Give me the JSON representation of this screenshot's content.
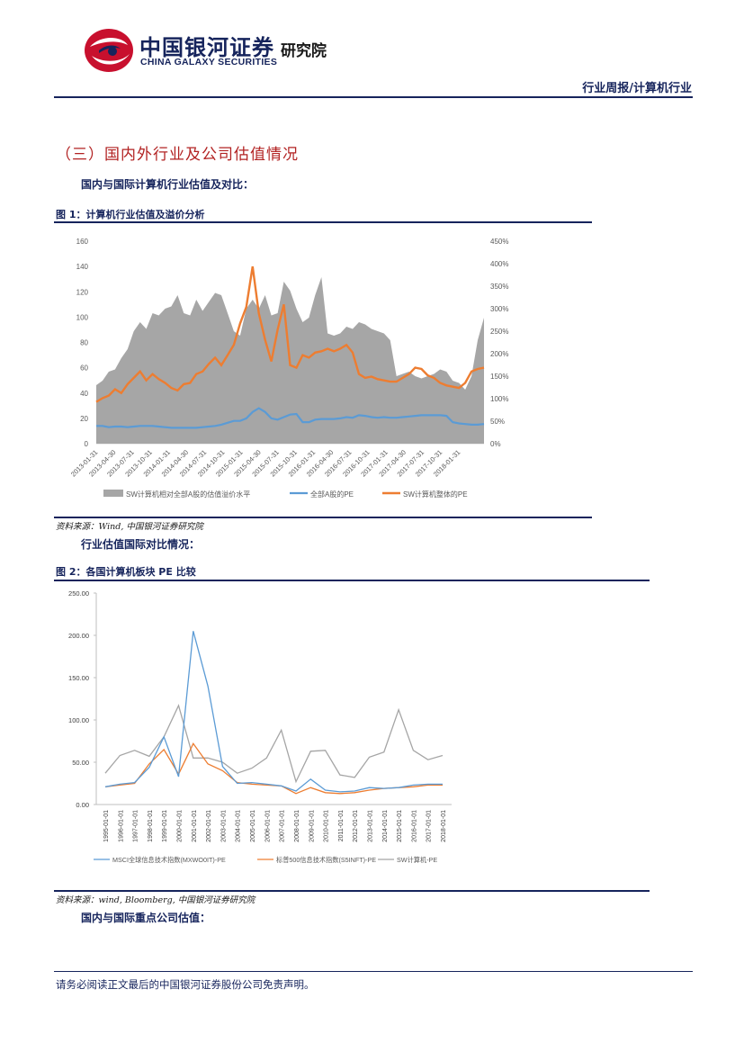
{
  "header": {
    "logo_cn": "中国银河证券",
    "logo_en": "CHINA GALAXY SECURITIES",
    "logo_institute": "研究院",
    "report_type": "行业周报/计算机行业"
  },
  "section": {
    "title": "（三）国内外行业及公司估值情况",
    "sub1": "国内与国际计算机行业估值及对比：",
    "sub2": "行业估值国际对比情况：",
    "sub3": "国内与国际重点公司估值："
  },
  "figure1": {
    "title": "图 1：计算机行业估值及溢价分析",
    "source": "资料来源：Wind, 中国银河证券研究院"
  },
  "figure2": {
    "title": "图 2：各国计算机板块 PE 比较",
    "source": "资料来源：wind, Bloomberg, 中国银河证券研究院"
  },
  "footer": {
    "disclaimer": "请务必阅读正文最后的中国银河证券股份公司免责声明。"
  },
  "colors": {
    "navy": "#16245c",
    "red": "#b22222",
    "gray_area": "#a6a6a6",
    "blue": "#5b9bd5",
    "orange": "#ed7d31",
    "gray_line": "#a5a5a5"
  },
  "chart_data": [
    {
      "type": "area",
      "title": "图 1：计算机行业估值及溢价分析",
      "y_left_ticks": [
        "0",
        "20",
        "40",
        "60",
        "80",
        "100",
        "120",
        "140",
        "160"
      ],
      "y_right_ticks": [
        "0%",
        "50%",
        "100%",
        "150%",
        "200%",
        "250%",
        "300%",
        "350%",
        "400%",
        "450%"
      ],
      "ylim_left": [
        0,
        160
      ],
      "ylim_right": [
        0,
        4.5
      ],
      "x_ticks": [
        "2013-01-31",
        "2013-04-30",
        "2013-07-31",
        "2013-10-31",
        "2014-01-31",
        "2014-04-30",
        "2014-07-31",
        "2014-10-31",
        "2015-01-31",
        "2015-04-30",
        "2015-07-31",
        "2015-10-31",
        "2016-01-31",
        "2016-04-30",
        "2016-07-31",
        "2016-10-31",
        "2017-01-31",
        "2017-04-30",
        "2017-07-31",
        "2017-10-31",
        "2018-01-31"
      ],
      "series": [
        {
          "name": "SW计算机相对全部A股的估值溢价水平",
          "axis": "right",
          "kind": "area",
          "values": [
            1.3,
            1.4,
            1.6,
            1.65,
            1.9,
            2.1,
            2.5,
            2.7,
            2.55,
            2.9,
            2.85,
            3.0,
            3.05,
            3.3,
            2.9,
            2.85,
            3.2,
            2.95,
            3.15,
            3.35,
            3.3,
            2.9,
            2.5,
            2.4,
            3.0,
            3.2,
            3.0,
            3.3,
            2.85,
            2.9,
            3.6,
            3.4,
            3.0,
            2.7,
            2.8,
            3.3,
            3.7,
            2.45,
            2.4,
            2.45,
            2.6,
            2.55,
            2.7,
            2.65,
            2.55,
            2.5,
            2.45,
            2.3,
            1.5,
            1.55,
            1.6,
            1.5,
            1.45,
            1.5,
            1.55,
            1.65,
            1.6,
            1.4,
            1.35,
            1.2,
            1.5,
            2.3,
            2.8
          ]
        },
        {
          "name": "全部A股的PE",
          "axis": "left",
          "kind": "line",
          "values": [
            14,
            14,
            13,
            13.5,
            13.5,
            13,
            13.5,
            14,
            14,
            14,
            13.5,
            13,
            12.5,
            12.5,
            12.5,
            12.5,
            12.5,
            13,
            13.5,
            14,
            15,
            16.5,
            18,
            18,
            20,
            25,
            28,
            25,
            20,
            19,
            21,
            23,
            23.5,
            17,
            17,
            19,
            19.5,
            19.5,
            19.5,
            20,
            21,
            20.5,
            22.5,
            22,
            21,
            20.5,
            21,
            20.5,
            20.5,
            21,
            21.5,
            22,
            22.5,
            22.5,
            22.5,
            22.5,
            22,
            17,
            16,
            15.5,
            15,
            15,
            15.5
          ]
        },
        {
          "name": "SW计算机整体的PE",
          "axis": "left",
          "kind": "line",
          "values": [
            33,
            36,
            38,
            43,
            40,
            47,
            52,
            57,
            50,
            55,
            51,
            48,
            44,
            42,
            47,
            48,
            55,
            57,
            63,
            68,
            62,
            70,
            78,
            95,
            108,
            140,
            103,
            82,
            65,
            90,
            110,
            62,
            60,
            70,
            68,
            72,
            73,
            75,
            73,
            75,
            78,
            72,
            55,
            52,
            53,
            51,
            50,
            49,
            49,
            52,
            55,
            60,
            59,
            54,
            52,
            48,
            46,
            45,
            44,
            48,
            57,
            59,
            60
          ]
        }
      ]
    },
    {
      "type": "line",
      "title": "图 2：各国计算机板块 PE 比较",
      "y_ticks": [
        "0.00",
        "50.00",
        "100.00",
        "150.00",
        "200.00",
        "250.00"
      ],
      "ylim": [
        0,
        250
      ],
      "x_ticks": [
        "1995-01-01",
        "1996-01-01",
        "1997-01-01",
        "1998-01-01",
        "1999-01-01",
        "2000-01-01",
        "2001-01-01",
        "2002-01-01",
        "2003-01-01",
        "2004-01-01",
        "2005-01-01",
        "2006-01-01",
        "2007-01-01",
        "2008-01-01",
        "2009-01-01",
        "2010-01-01",
        "2011-01-01",
        "2012-01-01",
        "2013-01-01",
        "2014-01-01",
        "2015-01-01",
        "2016-01-01",
        "2017-01-01",
        "2018-01-01"
      ],
      "series": [
        {
          "name": "MSCI全球信息技术指数(MXWO0IT)-PE",
          "values": [
            21,
            24,
            26,
            44,
            80,
            33,
            205,
            140,
            45,
            25,
            26,
            24,
            22,
            16,
            30,
            17,
            15,
            16,
            20,
            19,
            20,
            23,
            24,
            24
          ]
        },
        {
          "name": "标普500信息技术指数(S5INFT)-PE",
          "values": [
            21,
            23,
            25,
            48,
            65,
            36,
            72,
            48,
            40,
            26,
            24,
            23,
            22,
            13,
            20,
            14,
            13,
            14,
            17,
            19,
            20,
            21,
            23,
            23
          ]
        },
        {
          "name": "SW计算机-PE",
          "values": [
            37,
            58,
            64,
            57,
            80,
            117,
            55,
            55,
            50,
            37,
            43,
            55,
            88,
            27,
            63,
            64,
            35,
            32,
            56,
            62,
            112,
            64,
            53,
            58
          ]
        }
      ]
    }
  ]
}
